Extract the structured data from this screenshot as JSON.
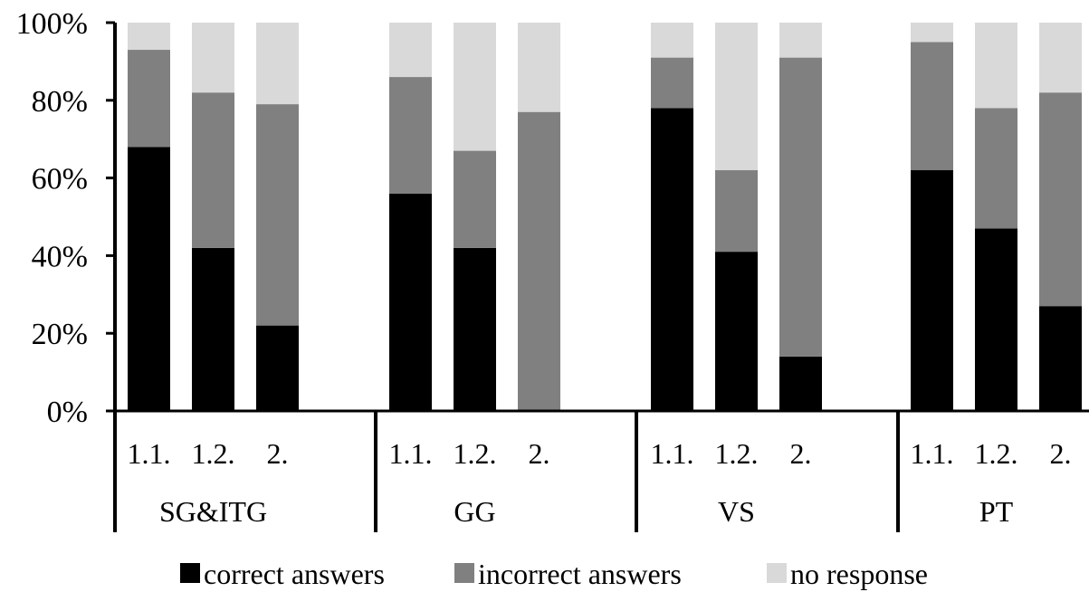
{
  "chart_data": {
    "type": "bar",
    "stacked": true,
    "groups": [
      "SG&ITG",
      "GG",
      "VS",
      "PT"
    ],
    "categories": [
      "1.1.",
      "1.2.",
      "2."
    ],
    "series": [
      {
        "name": "correct answers",
        "color": "#000000",
        "values": [
          [
            68,
            42,
            22
          ],
          [
            56,
            42,
            0
          ],
          [
            78,
            41,
            14
          ],
          [
            62,
            47,
            27
          ]
        ]
      },
      {
        "name": "incorrect answers",
        "color": "#808080",
        "values": [
          [
            25,
            40,
            57
          ],
          [
            30,
            25,
            77
          ],
          [
            13,
            21,
            77
          ],
          [
            33,
            31,
            55
          ]
        ]
      },
      {
        "name": "no response",
        "color": "#d9d9d9",
        "values": [
          [
            7,
            18,
            21
          ],
          [
            14,
            33,
            23
          ],
          [
            9,
            38,
            9
          ],
          [
            5,
            22,
            18
          ]
        ]
      }
    ],
    "y_ticks": [
      "0%",
      "20%",
      "40%",
      "60%",
      "80%",
      "100%"
    ],
    "ylim": [
      0,
      100
    ],
    "grid": false,
    "legend_position": "bottom"
  }
}
